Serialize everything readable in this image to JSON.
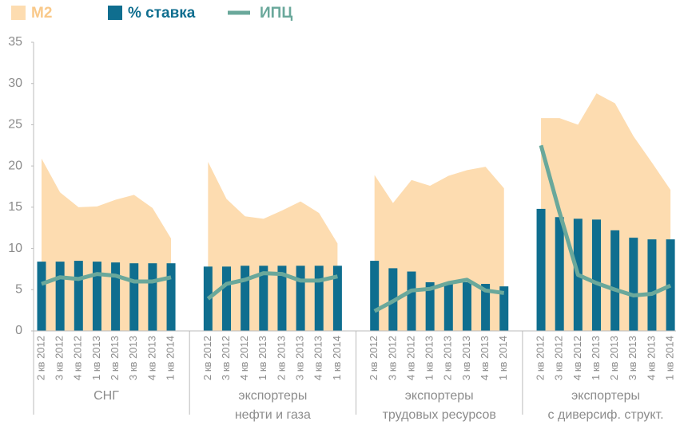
{
  "chart_data": {
    "type": "combo",
    "categories": [
      "2 кв 2012",
      "3 кв 2012",
      "4 кв 2012",
      "1 кв 2013",
      "2 кв 2013",
      "3 кв 2013",
      "4 кв 2013",
      "1 кв 2014"
    ],
    "groups": [
      [
        "СНГ"
      ],
      [
        "экспортеры",
        "нефти и газа"
      ],
      [
        "экспортеры",
        "трудовых ресурсов"
      ],
      [
        "экспортеры",
        "с диверсиф. структ."
      ]
    ],
    "series": [
      {
        "name": "M2",
        "color": "#fddcb0",
        "kind": "area",
        "values": [
          [
            20.9,
            16.8,
            15.0,
            15.1,
            15.9,
            16.5,
            14.9,
            11.2
          ],
          [
            20.5,
            16.0,
            13.9,
            13.6,
            14.6,
            15.7,
            14.3,
            10.6
          ],
          [
            18.9,
            15.5,
            18.3,
            17.6,
            18.8,
            19.5,
            19.9,
            17.3
          ],
          [
            25.8,
            25.8,
            25.0,
            28.8,
            27.6,
            23.6,
            20.4,
            17.1
          ]
        ]
      },
      {
        "name": "% ставка",
        "color": "#0f6e8f",
        "kind": "bar",
        "values": [
          [
            8.4,
            8.4,
            8.5,
            8.4,
            8.3,
            8.2,
            8.2,
            8.2
          ],
          [
            7.8,
            7.8,
            7.9,
            7.9,
            7.9,
            7.9,
            7.9,
            7.9
          ],
          [
            8.5,
            7.6,
            7.2,
            5.9,
            5.8,
            5.9,
            5.7,
            5.4
          ],
          [
            14.8,
            13.8,
            13.6,
            13.5,
            12.2,
            11.3,
            11.1,
            11.1
          ]
        ]
      },
      {
        "name": "ИПЦ",
        "color": "#6aa89b",
        "kind": "line",
        "values": [
          [
            5.7,
            6.5,
            6.3,
            6.9,
            6.7,
            6.0,
            6.0,
            6.5
          ],
          [
            3.9,
            5.7,
            6.2,
            7.0,
            6.9,
            6.1,
            6.1,
            6.6
          ],
          [
            2.4,
            3.6,
            4.9,
            5.1,
            5.8,
            6.2,
            4.9,
            4.6
          ],
          [
            22.5,
            14.4,
            6.8,
            5.8,
            5.0,
            4.3,
            4.5,
            5.5
          ]
        ]
      }
    ],
    "ylim": [
      0,
      35
    ],
    "yticks": [
      0,
      5,
      10,
      15,
      20,
      25,
      30,
      35
    ]
  }
}
